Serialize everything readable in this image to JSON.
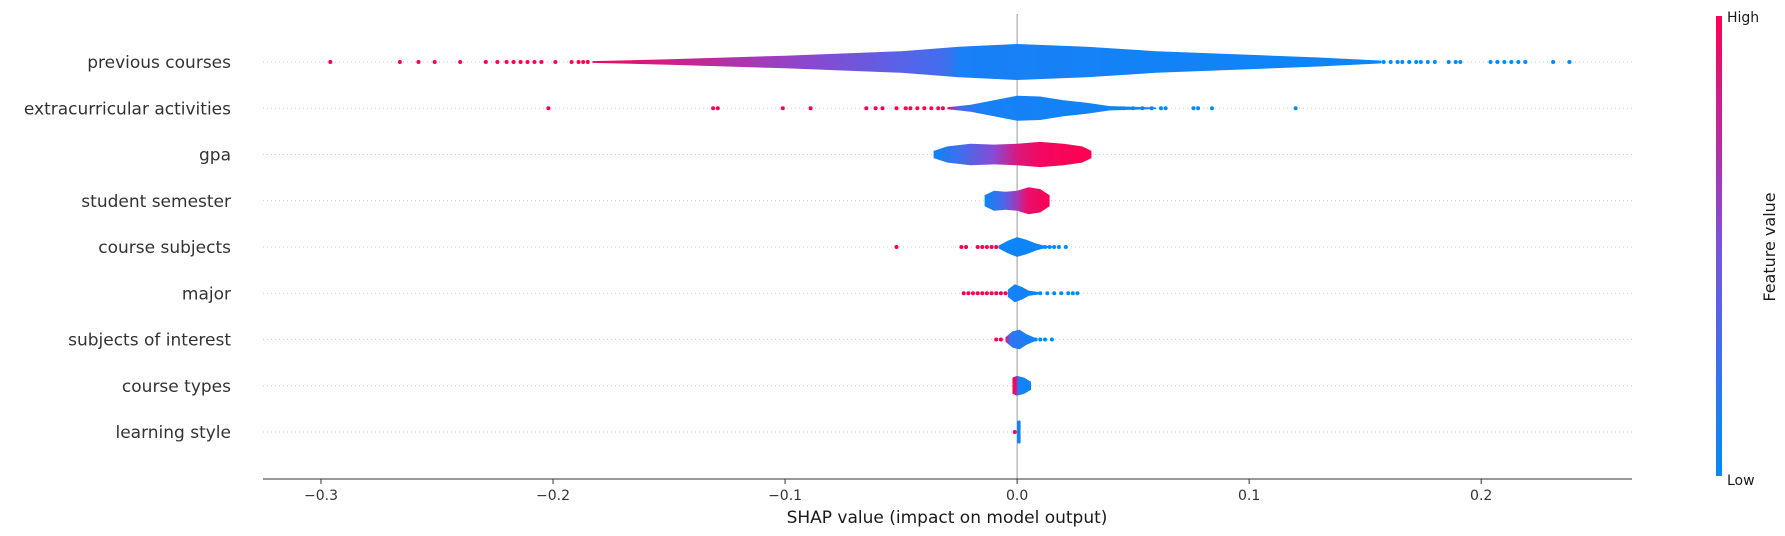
{
  "chart_data": {
    "type": "violin",
    "title": "",
    "xlabel": "SHAP value (impact on model output)",
    "ylabel": "",
    "xlim": [
      -0.325,
      0.265
    ],
    "xticks": [
      -0.3,
      -0.2,
      -0.1,
      0.0,
      0.1,
      0.2
    ],
    "xtick_labels": [
      "−0.3",
      "−0.2",
      "−0.1",
      "0.0",
      "0.1",
      "0.2"
    ],
    "features": [
      {
        "name": "previous courses",
        "profile": [
          [
            -0.183,
            0.05
          ],
          [
            -0.15,
            0.15
          ],
          [
            -0.1,
            0.35
          ],
          [
            -0.05,
            0.6
          ],
          [
            -0.025,
            0.85
          ],
          [
            0.0,
            1.0
          ],
          [
            0.03,
            0.85
          ],
          [
            0.06,
            0.6
          ],
          [
            0.1,
            0.4
          ],
          [
            0.13,
            0.25
          ],
          [
            0.157,
            0.08
          ]
        ],
        "color_stops": [
          [
            -0.183,
            0.95
          ],
          [
            -0.1,
            0.6
          ],
          [
            -0.05,
            0.35
          ],
          [
            -0.03,
            0.25
          ],
          [
            -0.025,
            0.1
          ],
          [
            0.157,
            0.05
          ]
        ],
        "dots": [
          {
            "x": -0.296,
            "v": 1
          },
          {
            "x": -0.266,
            "v": 1
          },
          {
            "x": -0.258,
            "v": 1
          },
          {
            "x": -0.251,
            "v": 1
          },
          {
            "x": -0.24,
            "v": 1
          },
          {
            "x": -0.229,
            "v": 1
          },
          {
            "x": -0.224,
            "v": 1
          },
          {
            "x": -0.22,
            "v": 1
          },
          {
            "x": -0.217,
            "v": 1
          },
          {
            "x": -0.214,
            "v": 1
          },
          {
            "x": -0.211,
            "v": 1
          },
          {
            "x": -0.208,
            "v": 1
          },
          {
            "x": -0.205,
            "v": 1
          },
          {
            "x": -0.199,
            "v": 1
          },
          {
            "x": -0.192,
            "v": 1
          },
          {
            "x": -0.189,
            "v": 1
          },
          {
            "x": -0.187,
            "v": 1
          },
          {
            "x": -0.185,
            "v": 1
          },
          {
            "x": 0.158,
            "v": 0
          },
          {
            "x": 0.161,
            "v": 0
          },
          {
            "x": 0.164,
            "v": 0
          },
          {
            "x": 0.166,
            "v": 0
          },
          {
            "x": 0.169,
            "v": 0
          },
          {
            "x": 0.172,
            "v": 0
          },
          {
            "x": 0.174,
            "v": 0
          },
          {
            "x": 0.177,
            "v": 0
          },
          {
            "x": 0.18,
            "v": 0
          },
          {
            "x": 0.186,
            "v": 0
          },
          {
            "x": 0.189,
            "v": 0
          },
          {
            "x": 0.191,
            "v": 0
          },
          {
            "x": 0.204,
            "v": 0
          },
          {
            "x": 0.207,
            "v": 0
          },
          {
            "x": 0.21,
            "v": 0
          },
          {
            "x": 0.213,
            "v": 0
          },
          {
            "x": 0.216,
            "v": 0
          },
          {
            "x": 0.219,
            "v": 0
          },
          {
            "x": 0.231,
            "v": 0
          },
          {
            "x": 0.238,
            "v": 0
          }
        ]
      },
      {
        "name": "extracurricular activities",
        "profile": [
          [
            -0.03,
            0.05
          ],
          [
            -0.02,
            0.2
          ],
          [
            -0.01,
            0.45
          ],
          [
            0.0,
            0.7
          ],
          [
            0.01,
            0.65
          ],
          [
            0.02,
            0.45
          ],
          [
            0.03,
            0.3
          ],
          [
            0.04,
            0.12
          ],
          [
            0.05,
            0.08
          ],
          [
            0.06,
            0.04
          ]
        ],
        "color_stops": [
          [
            -0.03,
            0.9
          ],
          [
            -0.025,
            0.3
          ],
          [
            -0.015,
            0.1
          ],
          [
            0.06,
            0.05
          ]
        ],
        "dots": [
          {
            "x": -0.202,
            "v": 1
          },
          {
            "x": -0.131,
            "v": 1
          },
          {
            "x": -0.129,
            "v": 1
          },
          {
            "x": -0.101,
            "v": 1
          },
          {
            "x": -0.089,
            "v": 1
          },
          {
            "x": -0.065,
            "v": 1
          },
          {
            "x": -0.061,
            "v": 1
          },
          {
            "x": -0.058,
            "v": 1
          },
          {
            "x": -0.052,
            "v": 1
          },
          {
            "x": -0.048,
            "v": 1
          },
          {
            "x": -0.046,
            "v": 1
          },
          {
            "x": -0.043,
            "v": 1
          },
          {
            "x": -0.04,
            "v": 1
          },
          {
            "x": -0.037,
            "v": 1
          },
          {
            "x": -0.034,
            "v": 1
          },
          {
            "x": -0.032,
            "v": 1
          },
          {
            "x": 0.046,
            "v": 0
          },
          {
            "x": 0.05,
            "v": 0
          },
          {
            "x": 0.054,
            "v": 0
          },
          {
            "x": 0.058,
            "v": 0
          },
          {
            "x": 0.062,
            "v": 0
          },
          {
            "x": 0.064,
            "v": 0
          },
          {
            "x": 0.076,
            "v": 0
          },
          {
            "x": 0.078,
            "v": 0
          },
          {
            "x": 0.084,
            "v": 0
          },
          {
            "x": 0.12,
            "v": 0
          }
        ]
      },
      {
        "name": "gpa",
        "profile": [
          [
            -0.036,
            0.2
          ],
          [
            -0.03,
            0.45
          ],
          [
            -0.02,
            0.6
          ],
          [
            -0.01,
            0.55
          ],
          [
            0.0,
            0.6
          ],
          [
            0.01,
            0.7
          ],
          [
            0.02,
            0.6
          ],
          [
            0.028,
            0.45
          ],
          [
            0.032,
            0.2
          ]
        ],
        "color_stops": [
          [
            -0.036,
            0.05
          ],
          [
            -0.025,
            0.25
          ],
          [
            -0.01,
            0.55
          ],
          [
            0.0,
            0.85
          ],
          [
            0.01,
            0.95
          ],
          [
            0.032,
            1.0
          ]
        ],
        "dots": []
      },
      {
        "name": "student semester",
        "profile": [
          [
            -0.014,
            0.3
          ],
          [
            -0.01,
            0.55
          ],
          [
            -0.005,
            0.5
          ],
          [
            0.0,
            0.55
          ],
          [
            0.005,
            0.75
          ],
          [
            0.01,
            0.65
          ],
          [
            0.014,
            0.3
          ]
        ],
        "color_stops": [
          [
            -0.014,
            0.05
          ],
          [
            -0.006,
            0.3
          ],
          [
            0.0,
            0.65
          ],
          [
            0.004,
            0.9
          ],
          [
            0.014,
            1.0
          ]
        ],
        "dots": []
      },
      {
        "name": "course subjects",
        "profile": [
          [
            -0.008,
            0.08
          ],
          [
            -0.004,
            0.35
          ],
          [
            0.0,
            0.55
          ],
          [
            0.004,
            0.4
          ],
          [
            0.008,
            0.2
          ],
          [
            0.012,
            0.06
          ],
          [
            0.016,
            0.03
          ]
        ],
        "color_stops": [
          [
            -0.008,
            0.05
          ],
          [
            0.016,
            0.05
          ]
        ],
        "dots": [
          {
            "x": -0.052,
            "v": 1
          },
          {
            "x": -0.024,
            "v": 1
          },
          {
            "x": -0.022,
            "v": 1
          },
          {
            "x": -0.017,
            "v": 1
          },
          {
            "x": -0.015,
            "v": 1
          },
          {
            "x": -0.013,
            "v": 1
          },
          {
            "x": -0.011,
            "v": 1
          },
          {
            "x": -0.009,
            "v": 1
          },
          {
            "x": 0.012,
            "v": 0
          },
          {
            "x": 0.014,
            "v": 0
          },
          {
            "x": 0.016,
            "v": 0
          },
          {
            "x": 0.018,
            "v": 0
          },
          {
            "x": 0.021,
            "v": 0
          }
        ]
      },
      {
        "name": "major",
        "profile": [
          [
            -0.004,
            0.2
          ],
          [
            -0.001,
            0.5
          ],
          [
            0.002,
            0.35
          ],
          [
            0.005,
            0.15
          ],
          [
            0.01,
            0.06
          ]
        ],
        "color_stops": [
          [
            -0.004,
            0.1
          ],
          [
            0.01,
            0.05
          ]
        ],
        "dots": [
          {
            "x": -0.023,
            "v": 1
          },
          {
            "x": -0.021,
            "v": 1
          },
          {
            "x": -0.019,
            "v": 1
          },
          {
            "x": -0.017,
            "v": 1
          },
          {
            "x": -0.015,
            "v": 1
          },
          {
            "x": -0.013,
            "v": 1
          },
          {
            "x": -0.011,
            "v": 1
          },
          {
            "x": -0.009,
            "v": 1
          },
          {
            "x": -0.007,
            "v": 1
          },
          {
            "x": -0.005,
            "v": 1
          },
          {
            "x": 0.01,
            "v": 0
          },
          {
            "x": 0.013,
            "v": 0
          },
          {
            "x": 0.016,
            "v": 0
          },
          {
            "x": 0.019,
            "v": 0
          },
          {
            "x": 0.022,
            "v": 0
          },
          {
            "x": 0.024,
            "v": 0
          },
          {
            "x": 0.026,
            "v": 0
          }
        ]
      },
      {
        "name": "subjects of interest",
        "profile": [
          [
            -0.005,
            0.12
          ],
          [
            -0.002,
            0.45
          ],
          [
            0.001,
            0.55
          ],
          [
            0.004,
            0.3
          ],
          [
            0.008,
            0.08
          ]
        ],
        "color_stops": [
          [
            -0.005,
            0.9
          ],
          [
            -0.003,
            0.2
          ],
          [
            0.008,
            0.05
          ]
        ],
        "dots": [
          {
            "x": -0.009,
            "v": 1
          },
          {
            "x": -0.007,
            "v": 1
          },
          {
            "x": 0.008,
            "v": 0
          },
          {
            "x": 0.01,
            "v": 0
          },
          {
            "x": 0.012,
            "v": 0
          },
          {
            "x": 0.015,
            "v": 0
          }
        ]
      },
      {
        "name": "course types",
        "profile": [
          [
            -0.002,
            0.45
          ],
          [
            0.0,
            0.55
          ],
          [
            0.003,
            0.45
          ],
          [
            0.006,
            0.22
          ]
        ],
        "color_stops": [
          [
            -0.002,
            1.0
          ],
          [
            -0.0005,
            0.9
          ],
          [
            0.0005,
            0.1
          ],
          [
            0.006,
            0.05
          ]
        ],
        "dots": []
      },
      {
        "name": "learning style",
        "profile": [
          [
            0.0,
            0.6
          ],
          [
            0.001,
            0.65
          ],
          [
            0.0015,
            0.6
          ]
        ],
        "color_stops": [
          [
            0.0,
            0.05
          ],
          [
            0.0015,
            0.05
          ]
        ],
        "dots": [
          {
            "x": -0.001,
            "v": 1
          }
        ]
      }
    ],
    "colorbar": {
      "title": "Feature value",
      "high_label": "High",
      "low_label": "Low",
      "low_color": "#008bfb",
      "mid_color": "#7c52e1",
      "high_color": "#ff0052"
    }
  }
}
